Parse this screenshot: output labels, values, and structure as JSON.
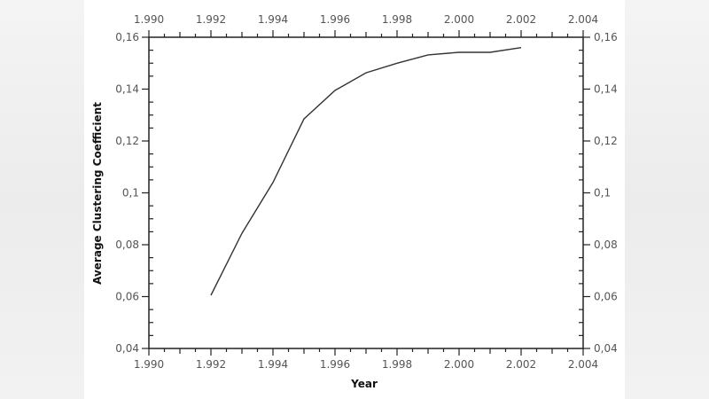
{
  "chart_data": {
    "type": "line",
    "title": "",
    "xlabel": "Year",
    "ylabel": "Average Clustering Coefficient",
    "xlim": [
      1990,
      2004
    ],
    "ylim": [
      0.04,
      0.16
    ],
    "x_ticks": [
      1990,
      1992,
      1994,
      1996,
      1998,
      2000,
      2002,
      2004
    ],
    "x_tick_labels": [
      "1.990",
      "1.992",
      "1.994",
      "1.996",
      "1.998",
      "2.000",
      "2.002",
      "2.004"
    ],
    "y_ticks": [
      0.04,
      0.06,
      0.08,
      0.1,
      0.12,
      0.14,
      0.16
    ],
    "y_tick_labels": [
      "0,04",
      "0,06",
      "0,08",
      "0,1",
      "0,12",
      "0,14",
      "0,16"
    ],
    "grid": false,
    "legend": null,
    "mirrored_axes": true,
    "series": [
      {
        "name": "Average Clustering Coefficient",
        "color": "#333333",
        "x": [
          1992,
          1993,
          1994,
          1995,
          1996,
          1997,
          1998,
          1999,
          2000,
          2001,
          2002
        ],
        "values": [
          0.0605,
          0.0844,
          0.104,
          0.1285,
          0.1395,
          0.1463,
          0.15,
          0.1532,
          0.1542,
          0.1542,
          0.156
        ]
      }
    ]
  },
  "colors": {
    "axis": "#222222",
    "tick_label": "#555555",
    "line": "#333333",
    "background": "#ffffff"
  }
}
